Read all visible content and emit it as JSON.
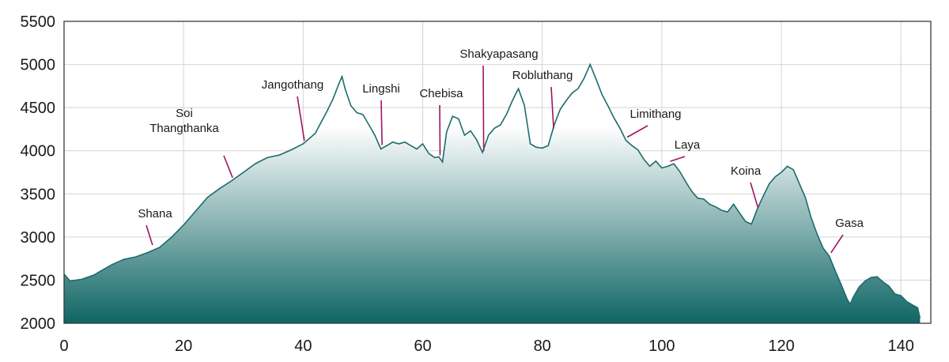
{
  "chart_data": {
    "type": "area",
    "title": "",
    "xlabel": "",
    "ylabel": "",
    "xlim": [
      0,
      145
    ],
    "ylim": [
      2000,
      5500
    ],
    "grid": true,
    "x_ticks": [
      "0",
      "20",
      "40",
      "60",
      "80",
      "100",
      "120",
      "140"
    ],
    "y_ticks": [
      "2000",
      "2500",
      "3000",
      "3500",
      "4000",
      "4500",
      "5000",
      "5500"
    ],
    "colors": {
      "fill_top": "#ffffff",
      "fill_bottom": "#0f6565",
      "line": "#1e6b6b",
      "callout": "#a0155f",
      "grid": "#d4d4d4"
    },
    "series": [
      {
        "x": [
          0,
          1,
          3,
          5,
          8,
          10,
          12,
          14,
          16,
          18,
          20,
          22,
          24,
          26,
          28,
          30,
          32,
          34,
          36,
          38,
          40,
          42,
          44,
          45,
          46,
          46.5,
          47,
          48,
          49,
          50,
          51,
          52,
          53,
          54,
          55,
          56,
          57,
          58,
          59,
          60,
          61,
          62,
          62.7,
          63.3,
          64,
          65,
          66,
          67,
          68,
          69,
          70,
          71,
          72,
          73,
          74,
          75,
          76,
          77,
          78,
          79,
          80,
          81,
          82,
          83,
          84,
          85,
          86,
          87,
          88,
          89,
          90,
          91,
          92,
          93,
          94,
          95,
          96,
          97,
          98,
          99,
          100,
          101,
          102,
          103,
          104,
          105,
          106,
          107,
          108,
          109,
          110,
          111,
          112,
          113,
          114,
          115,
          116,
          117,
          118,
          119,
          120,
          121,
          122,
          123,
          124,
          125,
          126,
          127,
          128,
          129,
          130,
          131,
          131.5,
          132,
          133,
          134,
          135,
          136,
          137,
          138,
          139,
          140,
          141,
          142,
          142.8,
          143.2
        ],
        "y": [
          2570,
          2490,
          2510,
          2560,
          2680,
          2740,
          2770,
          2820,
          2880,
          3000,
          3140,
          3300,
          3460,
          3560,
          3650,
          3750,
          3850,
          3920,
          3950,
          4010,
          4080,
          4200,
          4460,
          4600,
          4780,
          4860,
          4720,
          4520,
          4440,
          4420,
          4300,
          4180,
          4020,
          4060,
          4100,
          4080,
          4100,
          4060,
          4020,
          4080,
          3970,
          3920,
          3930,
          3870,
          4220,
          4400,
          4370,
          4180,
          4230,
          4130,
          3980,
          4180,
          4260,
          4300,
          4420,
          4580,
          4720,
          4530,
          4080,
          4040,
          4030,
          4060,
          4300,
          4480,
          4580,
          4670,
          4720,
          4840,
          5000,
          4830,
          4650,
          4520,
          4380,
          4260,
          4120,
          4060,
          4010,
          3900,
          3820,
          3880,
          3800,
          3820,
          3850,
          3760,
          3640,
          3530,
          3450,
          3440,
          3380,
          3350,
          3310,
          3290,
          3380,
          3280,
          3180,
          3150,
          3330,
          3480,
          3620,
          3700,
          3750,
          3820,
          3780,
          3620,
          3460,
          3220,
          3030,
          2870,
          2780,
          2610,
          2450,
          2280,
          2220,
          2300,
          2420,
          2490,
          2530,
          2540,
          2480,
          2430,
          2340,
          2320,
          2250,
          2210,
          2180,
          2060
        ]
      }
    ],
    "annotations": [
      {
        "label": "Shana",
        "lines": [
          "Shana"
        ],
        "x": 14.8,
        "y": 2870
      },
      {
        "label": "Soi Thangthanka",
        "lines": [
          "Soi",
          "Thangthanka"
        ],
        "x": 28.2,
        "y": 3650
      },
      {
        "label": "Jangothang",
        "lines": [
          "Jangothang"
        ],
        "x": 40.2,
        "y": 4080
      },
      {
        "label": "Lingshi",
        "lines": [
          "Lingshi"
        ],
        "x": 53.2,
        "y": 4030
      },
      {
        "label": "Chebisa",
        "lines": [
          "Chebisa"
        ],
        "x": 62.9,
        "y": 3910
      },
      {
        "label": "Shakyapasang",
        "lines": [
          "Shakyapasang"
        ],
        "x": 70.2,
        "y": 3960
      },
      {
        "label": "Robluthang",
        "lines": [
          "Robluthang"
        ],
        "x": 81.9,
        "y": 4220
      },
      {
        "label": "Limithang",
        "lines": [
          "Limithang"
        ],
        "x": 94.2,
        "y": 4120
      },
      {
        "label": "Laya",
        "lines": [
          "Laya"
        ],
        "x": 101.4,
        "y": 3840
      },
      {
        "label": "Koina",
        "lines": [
          "Koina"
        ],
        "x": 116.1,
        "y": 3300
      },
      {
        "label": "Gasa",
        "lines": [
          "Gasa"
        ],
        "x": 128.3,
        "y": 2780
      }
    ]
  }
}
